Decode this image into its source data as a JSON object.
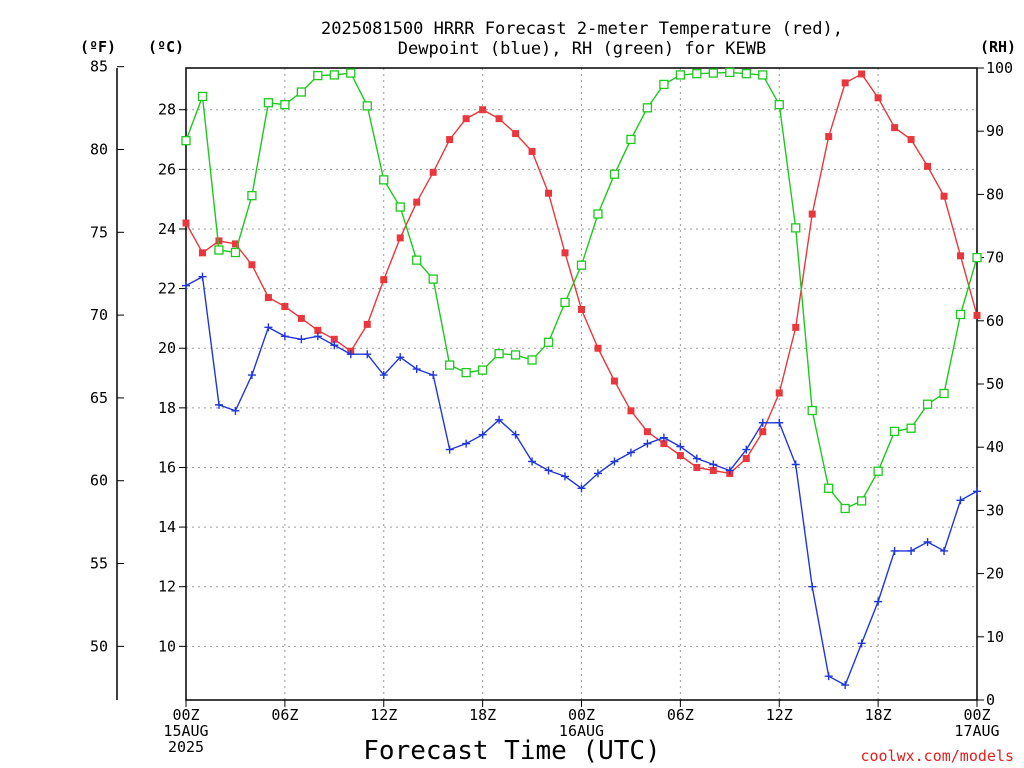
{
  "title_line1": "2025081500 HRRR Forecast 2-meter Temperature (red),",
  "title_line2": "Dewpoint (blue), RH (green) for KEWB",
  "units": {
    "fahrenheit": "(ºF)",
    "celsius": "(ºC)",
    "rh": "(RH)"
  },
  "xlabel": "Forecast Time (UTC)",
  "credit": "coolwx.com/models",
  "colors": {
    "temperature": "#e8383d",
    "dewpoint": "#2036d8",
    "rh": "#1ec81e"
  },
  "chart_data": {
    "type": "line",
    "x_unit": "forecast hour",
    "x": [
      0,
      1,
      2,
      3,
      4,
      5,
      6,
      7,
      8,
      9,
      10,
      11,
      12,
      13,
      14,
      15,
      16,
      17,
      18,
      19,
      20,
      21,
      22,
      23,
      24,
      25,
      26,
      27,
      28,
      29,
      30,
      31,
      32,
      33,
      34,
      35,
      36,
      37,
      38,
      39,
      40,
      41,
      42,
      43,
      44,
      45,
      46,
      47,
      48
    ],
    "xlim": [
      0,
      48
    ],
    "x_ticks": [
      {
        "x": 0,
        "lines": [
          "00Z",
          "15AUG",
          "2025"
        ]
      },
      {
        "x": 6,
        "lines": [
          "06Z"
        ]
      },
      {
        "x": 12,
        "lines": [
          "12Z"
        ]
      },
      {
        "x": 18,
        "lines": [
          "18Z"
        ]
      },
      {
        "x": 24,
        "lines": [
          "00Z",
          "16AUG"
        ]
      },
      {
        "x": 30,
        "lines": [
          "06Z"
        ]
      },
      {
        "x": 36,
        "lines": [
          "12Z"
        ]
      },
      {
        "x": 42,
        "lines": [
          "18Z"
        ]
      },
      {
        "x": 48,
        "lines": [
          "00Z",
          "17AUG"
        ]
      }
    ],
    "y_celsius": {
      "lim": [
        8.2,
        29.4
      ],
      "ticks": [
        10,
        12,
        14,
        16,
        18,
        20,
        22,
        24,
        26,
        28
      ]
    },
    "y_fahrenheit": {
      "ticks": [
        50,
        55,
        60,
        65,
        70,
        75,
        80,
        85
      ]
    },
    "y_rh": {
      "lim": [
        0,
        100
      ],
      "ticks": [
        0,
        10,
        20,
        30,
        40,
        50,
        60,
        70,
        80,
        90,
        100
      ]
    },
    "grid": true,
    "series": [
      {
        "name": "Temperature",
        "axis": "celsius",
        "marker": "filled-square",
        "values": [
          24.2,
          23.2,
          23.6,
          23.5,
          22.8,
          21.7,
          21.4,
          21.0,
          20.6,
          20.3,
          19.9,
          20.8,
          22.3,
          23.7,
          24.9,
          25.9,
          27.0,
          27.7,
          28.0,
          27.7,
          27.2,
          26.6,
          25.2,
          23.2,
          21.3,
          20.0,
          18.9,
          17.9,
          17.2,
          16.8,
          16.4,
          16.0,
          15.9,
          15.8,
          16.3,
          17.2,
          18.5,
          20.7,
          24.5,
          27.1,
          28.9,
          29.2,
          28.4,
          27.4,
          27.0,
          26.1,
          25.1,
          23.1,
          21.1
        ]
      },
      {
        "name": "Dewpoint",
        "axis": "celsius",
        "marker": "plus",
        "values": [
          22.1,
          22.4,
          18.1,
          17.9,
          19.1,
          20.7,
          20.4,
          20.3,
          20.4,
          20.1,
          19.8,
          19.8,
          19.1,
          19.7,
          19.3,
          19.1,
          16.6,
          16.8,
          17.1,
          17.6,
          17.1,
          16.2,
          15.9,
          15.7,
          15.3,
          15.8,
          16.2,
          16.5,
          16.8,
          17.0,
          16.7,
          16.3,
          16.1,
          15.9,
          16.6,
          17.5,
          17.5,
          16.1,
          12.0,
          9.0,
          8.7,
          10.1,
          11.5,
          13.2,
          13.2,
          13.5,
          13.2,
          14.9,
          15.2
        ]
      },
      {
        "name": "RH",
        "axis": "rh",
        "marker": "open-square",
        "values": [
          88.5,
          95.5,
          71.2,
          70.8,
          79.8,
          94.5,
          94.2,
          96.2,
          98.8,
          98.9,
          99.2,
          94.0,
          82.3,
          78.0,
          69.6,
          66.6,
          53.0,
          51.8,
          52.2,
          54.8,
          54.6,
          53.8,
          56.6,
          62.9,
          68.8,
          76.9,
          83.2,
          88.7,
          93.7,
          97.4,
          98.9,
          99.1,
          99.2,
          99.3,
          99.1,
          98.9,
          94.2,
          74.7,
          45.8,
          33.5,
          30.3,
          31.5,
          36.2,
          42.5,
          43.0,
          46.8,
          48.5,
          61.0,
          70.0
        ]
      }
    ]
  }
}
